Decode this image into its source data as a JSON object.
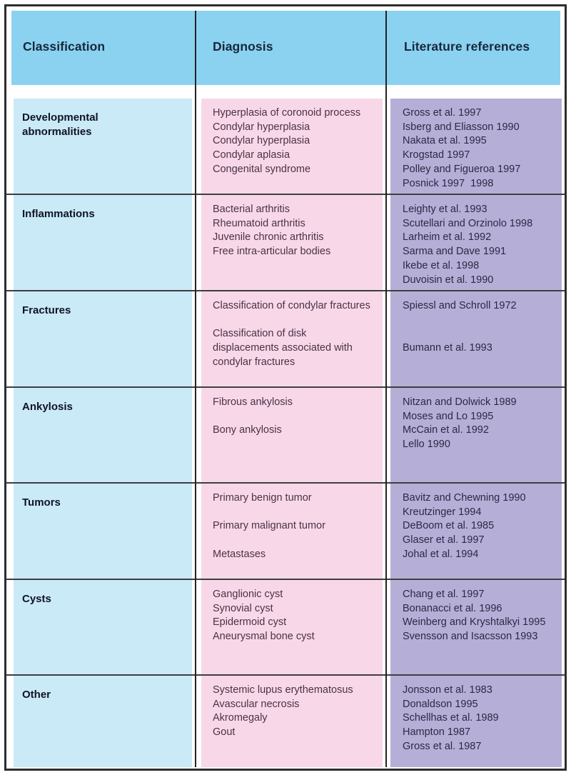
{
  "figure": {
    "headers": {
      "classification": "Classification",
      "diagnosis": "Diagnosis",
      "references": "Literature references"
    },
    "rows": [
      {
        "classification": "Developmental abnormalities",
        "diagnosis": [
          "Hyperplasia of coronoid process",
          "Condylar hyperplasia",
          "Condylar hyperplasia",
          "Condylar aplasia",
          "Congenital syndrome"
        ],
        "references": [
          "Gross et al. 1997",
          "Isberg and Eliasson 1990",
          "Nakata et al. 1995",
          "Krogstad 1997",
          "Polley and Figueroa 1997",
          "Posnick 1997  1998"
        ]
      },
      {
        "classification": "Inflammations",
        "diagnosis": [
          "Bacterial arthritis",
          "Rheumatoid arthritis",
          "Juvenile chronic arthritis",
          "Free intra-articular bodies"
        ],
        "references": [
          "Leighty et al. 1993",
          "Scutellari and Orzinolo 1998",
          "Larheim et al. 1992",
          "Sarma and Dave 1991",
          "Ikebe et al. 1998",
          "Duvoisin et al. 1990"
        ]
      },
      {
        "classification": "Fractures",
        "diagnosis": [
          "Classification of condylar fractures",
          "",
          "Classification of disk displacements associated with condylar fractures"
        ],
        "references": [
          "Spiessl and Schroll 1972",
          "",
          "",
          "Bumann et al. 1993"
        ]
      },
      {
        "classification": "Ankylosis",
        "diagnosis": [
          "Fibrous ankylosis",
          "",
          "Bony ankylosis"
        ],
        "references": [
          "Nitzan and Dolwick 1989",
          "Moses and Lo 1995",
          "McCain et al. 1992",
          "Lello 1990"
        ]
      },
      {
        "classification": "Tumors",
        "diagnosis": [
          "Primary benign tumor",
          "",
          "Primary malignant tumor",
          "",
          "Metastases"
        ],
        "references": [
          "Bavitz and Chewning 1990",
          "Kreutzinger 1994",
          "DeBoom et al. 1985",
          "Glaser et al. 1997",
          "Johal et al. 1994"
        ]
      },
      {
        "classification": "Cysts",
        "diagnosis": [
          "Ganglionic cyst",
          "Synovial cyst",
          "Epidermoid cyst",
          "Aneurysmal bone cyst"
        ],
        "references": [
          "Chang et al. 1997",
          "Bonanacci et al. 1996",
          "Weinberg and Kryshtalkyi 1995",
          "Svensson and Isacsson 1993"
        ]
      },
      {
        "classification": "Other",
        "diagnosis": [
          "Systemic lupus erythematosus",
          "Avascular necrosis",
          "Akromegaly",
          "Gout"
        ],
        "references": [
          "Jonsson et al. 1983",
          "Donaldson 1995",
          "Schellhas et al. 1989",
          "Hampton 1987",
          "Gross et al. 1987"
        ]
      }
    ],
    "colors": {
      "header_bg": "#8bd2f1",
      "classification_bg": "#c9eaf6",
      "diagnosis_bg": "#f8d8e8",
      "references_bg": "#b5afd7",
      "frame_border": "#2d2d2d",
      "row_line": "#3e3e3e",
      "column_line": "#222222"
    }
  }
}
